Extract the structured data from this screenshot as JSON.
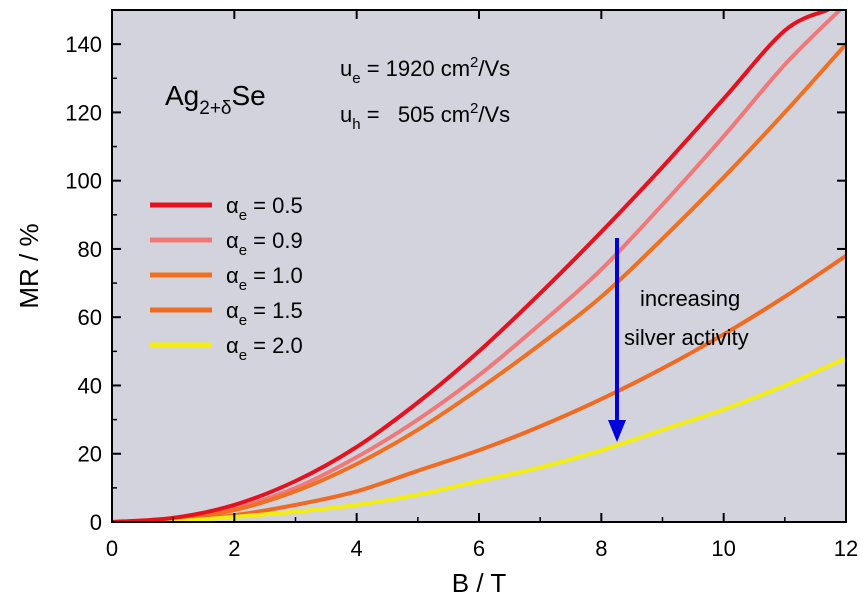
{
  "chart_data": {
    "type": "line",
    "xlabel": "B / T",
    "ylabel": "MR / %",
    "xlim": [
      0,
      12
    ],
    "ylim": [
      0,
      150
    ],
    "xticks": [
      0,
      2,
      4,
      6,
      8,
      10,
      12
    ],
    "yticks": [
      0,
      20,
      40,
      60,
      80,
      100,
      120,
      140
    ],
    "grid": false,
    "background": "#d3d3de",
    "legend_position": "left",
    "compound": {
      "base": "Ag",
      "subscript": "2+δ",
      "suffix": "Se"
    },
    "mobility_electron": {
      "symbol": "u",
      "sub": "e",
      "value": " = 1920 cm",
      "sup": "2",
      "unit": "/Vs"
    },
    "mobility_hole": {
      "symbol": "u",
      "sub": "h",
      "value": " =   505 cm",
      "sup": "2",
      "unit": "/Vs"
    },
    "annotation": {
      "lines": [
        "increasing",
        "silver activity"
      ],
      "arrow_color": "#0000dd"
    },
    "series": [
      {
        "name": "α_e = 0.5",
        "symbol": "α",
        "sub": "e",
        "value": " = 0.5",
        "color": "#e8101c",
        "points": [
          [
            0,
            0
          ],
          [
            1,
            1.2
          ],
          [
            2,
            5
          ],
          [
            3,
            12
          ],
          [
            4,
            22
          ],
          [
            5,
            35
          ],
          [
            6,
            50
          ],
          [
            7,
            67
          ],
          [
            8,
            85
          ],
          [
            9,
            104
          ],
          [
            10,
            124
          ],
          [
            11,
            144
          ],
          [
            11.7,
            150
          ]
        ]
      },
      {
        "name": "α_e = 0.9",
        "symbol": "α",
        "sub": "e",
        "value": " = 0.9",
        "color": "#f07878",
        "points": [
          [
            0,
            0
          ],
          [
            1,
            0.8
          ],
          [
            2,
            4
          ],
          [
            3,
            10
          ],
          [
            4,
            19
          ],
          [
            5,
            30
          ],
          [
            6,
            43
          ],
          [
            7,
            58
          ],
          [
            8,
            74
          ],
          [
            9,
            93
          ],
          [
            10,
            113
          ],
          [
            11,
            134
          ],
          [
            11.9,
            150
          ]
        ]
      },
      {
        "name": "α_e = 1.0",
        "symbol": "α",
        "sub": "e",
        "value": " = 1.0",
        "color": "#f07020",
        "points": [
          [
            0,
            0
          ],
          [
            1,
            0.6
          ],
          [
            2,
            3.5
          ],
          [
            3,
            9
          ],
          [
            4,
            17
          ],
          [
            5,
            27
          ],
          [
            6,
            39
          ],
          [
            7,
            52
          ],
          [
            8,
            66
          ],
          [
            9,
            83
          ],
          [
            10,
            101
          ],
          [
            11,
            120
          ],
          [
            12,
            140
          ]
        ]
      },
      {
        "name": "α_e = 1.5",
        "symbol": "α",
        "sub": "e",
        "value": " = 1.5",
        "color": "#f06a22",
        "points": [
          [
            0,
            0
          ],
          [
            1,
            0.3
          ],
          [
            2,
            2
          ],
          [
            3,
            5
          ],
          [
            4,
            9
          ],
          [
            5,
            15
          ],
          [
            6,
            21
          ],
          [
            7,
            28
          ],
          [
            8,
            36
          ],
          [
            9,
            45
          ],
          [
            10,
            55
          ],
          [
            11,
            66
          ],
          [
            12,
            78
          ]
        ]
      },
      {
        "name": "α_e = 2.0",
        "symbol": "α",
        "sub": "e",
        "value": " = 2.0",
        "color": "#f2ee10",
        "points": [
          [
            0,
            0
          ],
          [
            1,
            0.2
          ],
          [
            2,
            1.5
          ],
          [
            3,
            3
          ],
          [
            4,
            5
          ],
          [
            5,
            8
          ],
          [
            6,
            12
          ],
          [
            7,
            16
          ],
          [
            8,
            21
          ],
          [
            9,
            27
          ],
          [
            10,
            33
          ],
          [
            11,
            40
          ],
          [
            12,
            48
          ]
        ]
      }
    ]
  }
}
